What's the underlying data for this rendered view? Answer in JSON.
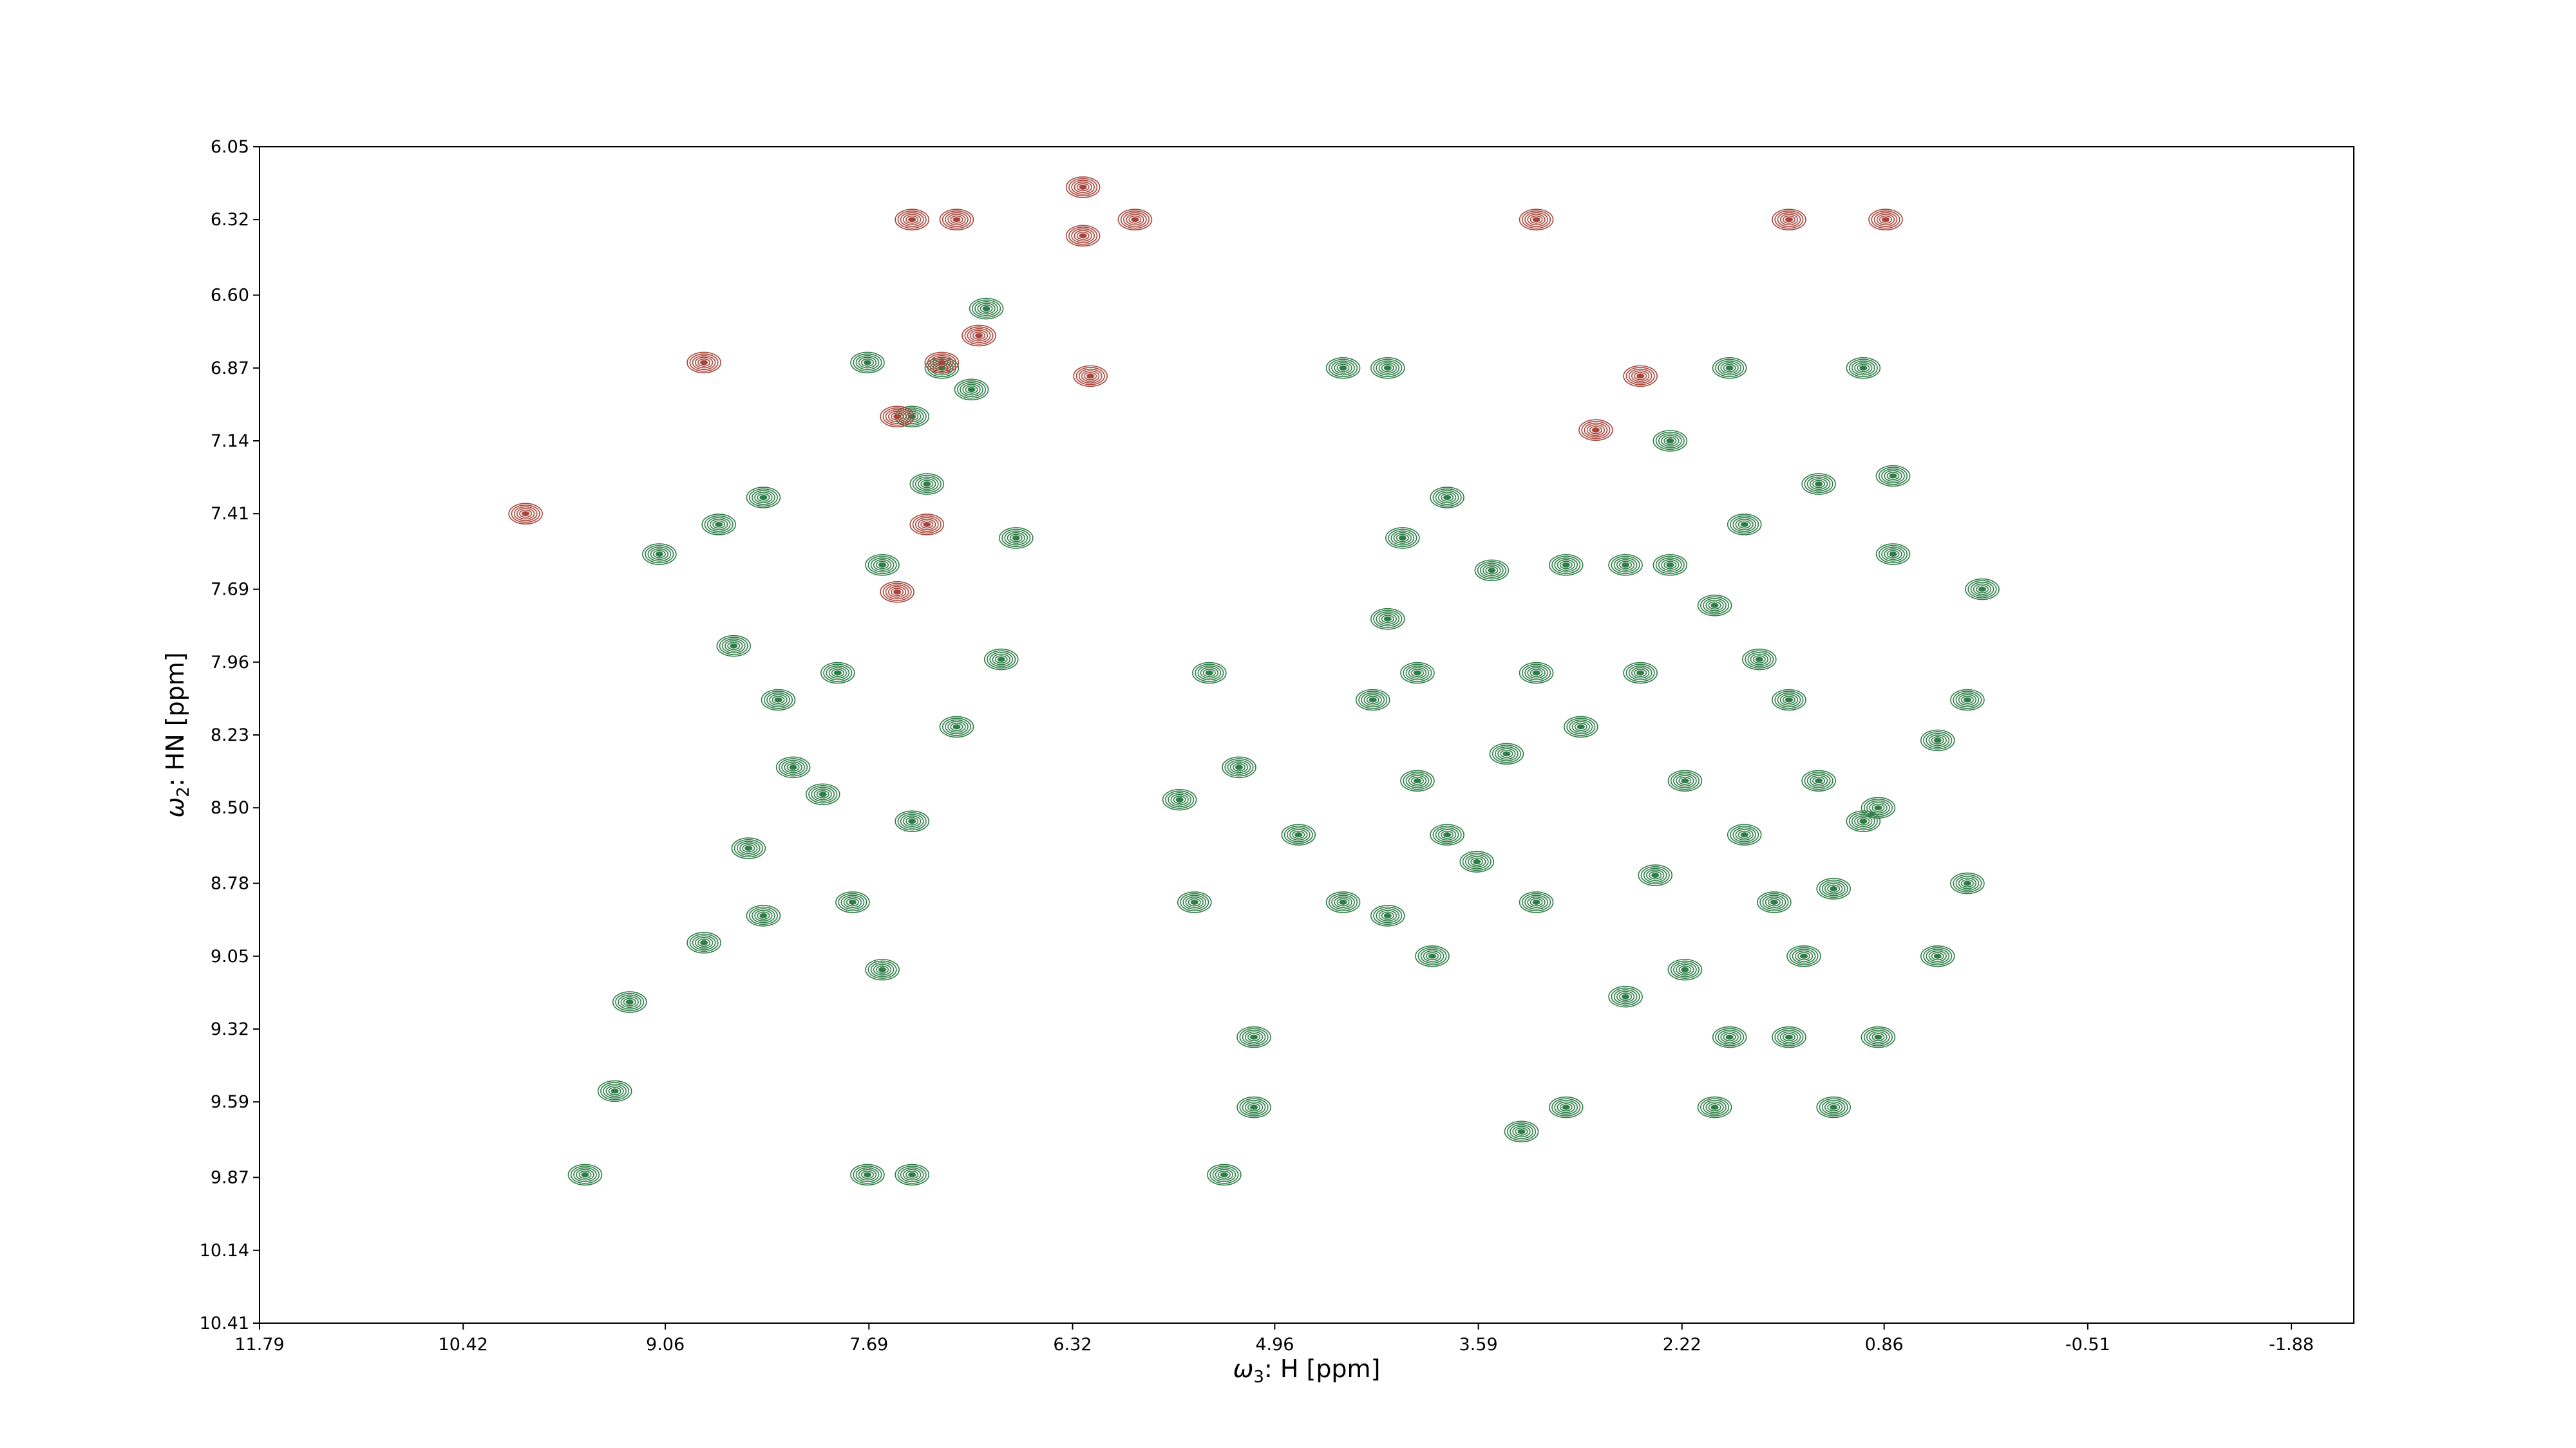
{
  "chart_data": {
    "type": "contour",
    "xlabel": {
      "omega": "ω",
      "sub": "3",
      "rest": ": H [ppm]"
    },
    "ylabel": {
      "omega": "ω",
      "sub": "2",
      "rest": ": HN [ppm]"
    },
    "xlim": [
      11.79,
      -2.3
    ],
    "ylim": [
      6.05,
      10.41
    ],
    "x_ticks": [
      11.79,
      10.42,
      9.06,
      7.69,
      6.32,
      4.96,
      3.59,
      2.22,
      0.86,
      -0.51,
      -1.88
    ],
    "x_tick_labels": [
      "11.79",
      "10.42",
      "9.06",
      "7.69",
      "6.32",
      "4.96",
      "3.59",
      "2.22",
      "0.86",
      "-0.51",
      "-1.88"
    ],
    "y_ticks": [
      6.05,
      6.32,
      6.6,
      6.87,
      7.14,
      7.41,
      7.69,
      7.96,
      8.23,
      8.5,
      8.78,
      9.05,
      9.32,
      9.59,
      9.87,
      10.14,
      10.41
    ],
    "y_tick_labels": [
      "6.05",
      "6.32",
      "6.60",
      "6.87",
      "7.14",
      "7.41",
      "7.69",
      "7.96",
      "8.23",
      "8.50",
      "8.78",
      "9.05",
      "9.32",
      "9.59",
      "9.87",
      "10.14",
      "10.41"
    ],
    "colors": {
      "positive": "#2e7d46",
      "negative": "#a8453a"
    },
    "series": [
      {
        "sign": "positive",
        "peaks": [
          {
            "x": 9.3,
            "y": 9.22
          },
          {
            "x": 9.4,
            "y": 9.55
          },
          {
            "x": 9.6,
            "y": 9.86
          },
          {
            "x": 8.8,
            "y": 9.0
          },
          {
            "x": 8.5,
            "y": 8.65
          },
          {
            "x": 8.2,
            "y": 8.35
          },
          {
            "x": 7.9,
            "y": 8.0
          },
          {
            "x": 7.6,
            "y": 7.6
          },
          {
            "x": 7.3,
            "y": 7.3
          },
          {
            "x": 7.0,
            "y": 6.95
          },
          {
            "x": 6.9,
            "y": 6.65
          },
          {
            "x": 7.2,
            "y": 6.87
          },
          {
            "x": 7.7,
            "y": 6.85
          },
          {
            "x": 7.4,
            "y": 7.05
          },
          {
            "x": 8.4,
            "y": 7.35
          },
          {
            "x": 8.7,
            "y": 7.45
          },
          {
            "x": 9.1,
            "y": 7.56
          },
          {
            "x": 8.6,
            "y": 7.9
          },
          {
            "x": 8.3,
            "y": 8.1
          },
          {
            "x": 8.0,
            "y": 8.45
          },
          {
            "x": 7.8,
            "y": 8.85
          },
          {
            "x": 7.4,
            "y": 8.55
          },
          {
            "x": 7.1,
            "y": 8.2
          },
          {
            "x": 6.8,
            "y": 7.95
          },
          {
            "x": 6.7,
            "y": 7.5
          },
          {
            "x": 7.7,
            "y": 9.86
          },
          {
            "x": 7.4,
            "y": 9.86
          },
          {
            "x": 8.4,
            "y": 8.9
          },
          {
            "x": 7.6,
            "y": 9.1
          },
          {
            "x": 5.1,
            "y": 9.35
          },
          {
            "x": 5.1,
            "y": 9.61
          },
          {
            "x": 5.3,
            "y": 9.86
          },
          {
            "x": 5.5,
            "y": 8.85
          },
          {
            "x": 5.6,
            "y": 8.47
          },
          {
            "x": 5.2,
            "y": 8.35
          },
          {
            "x": 5.4,
            "y": 8.0
          },
          {
            "x": 4.8,
            "y": 8.6
          },
          {
            "x": 4.5,
            "y": 8.85
          },
          {
            "x": 4.2,
            "y": 8.9
          },
          {
            "x": 4.0,
            "y": 8.0
          },
          {
            "x": 4.3,
            "y": 8.1
          },
          {
            "x": 4.0,
            "y": 8.4
          },
          {
            "x": 3.8,
            "y": 8.6
          },
          {
            "x": 3.6,
            "y": 8.7
          },
          {
            "x": 3.4,
            "y": 8.3
          },
          {
            "x": 3.2,
            "y": 8.0
          },
          {
            "x": 4.2,
            "y": 7.8
          },
          {
            "x": 4.1,
            "y": 7.5
          },
          {
            "x": 3.8,
            "y": 7.35
          },
          {
            "x": 4.5,
            "y": 6.87
          },
          {
            "x": 4.2,
            "y": 6.87
          },
          {
            "x": 3.5,
            "y": 7.62
          },
          {
            "x": 3.9,
            "y": 9.05
          },
          {
            "x": 2.9,
            "y": 8.2
          },
          {
            "x": 2.5,
            "y": 8.0
          },
          {
            "x": 2.3,
            "y": 7.6
          },
          {
            "x": 2.6,
            "y": 7.6
          },
          {
            "x": 2.0,
            "y": 7.75
          },
          {
            "x": 1.7,
            "y": 7.95
          },
          {
            "x": 1.5,
            "y": 8.1
          },
          {
            "x": 1.3,
            "y": 8.4
          },
          {
            "x": 1.0,
            "y": 8.55
          },
          {
            "x": 1.8,
            "y": 8.6
          },
          {
            "x": 2.2,
            "y": 8.4
          },
          {
            "x": 2.4,
            "y": 8.75
          },
          {
            "x": 1.6,
            "y": 8.85
          },
          {
            "x": 1.2,
            "y": 8.8
          },
          {
            "x": 0.9,
            "y": 8.5
          },
          {
            "x": 0.8,
            "y": 7.56
          },
          {
            "x": 0.8,
            "y": 7.27
          },
          {
            "x": 1.3,
            "y": 7.3
          },
          {
            "x": 1.8,
            "y": 7.45
          },
          {
            "x": 2.3,
            "y": 7.14
          },
          {
            "x": 1.9,
            "y": 6.87
          },
          {
            "x": 1.0,
            "y": 6.87
          },
          {
            "x": 3.0,
            "y": 7.6
          },
          {
            "x": 3.2,
            "y": 8.85
          },
          {
            "x": 2.2,
            "y": 9.1
          },
          {
            "x": 1.9,
            "y": 9.35
          },
          {
            "x": 1.5,
            "y": 9.35
          },
          {
            "x": 0.9,
            "y": 9.35
          },
          {
            "x": 1.2,
            "y": 9.61
          },
          {
            "x": 2.0,
            "y": 9.61
          },
          {
            "x": 3.0,
            "y": 9.61
          },
          {
            "x": 0.5,
            "y": 8.25
          },
          {
            "x": 0.3,
            "y": 8.1
          },
          {
            "x": 0.2,
            "y": 7.69
          },
          {
            "x": 0.3,
            "y": 8.78
          },
          {
            "x": 0.5,
            "y": 9.05
          },
          {
            "x": 1.4,
            "y": 9.05
          },
          {
            "x": 2.6,
            "y": 9.2
          },
          {
            "x": 3.3,
            "y": 9.7
          }
        ]
      },
      {
        "sign": "negative",
        "peaks": [
          {
            "x": 6.25,
            "y": 6.2
          },
          {
            "x": 6.25,
            "y": 6.38
          },
          {
            "x": 5.9,
            "y": 6.32
          },
          {
            "x": 6.2,
            "y": 6.9
          },
          {
            "x": 7.4,
            "y": 6.32
          },
          {
            "x": 7.1,
            "y": 6.32
          },
          {
            "x": 6.95,
            "y": 6.75
          },
          {
            "x": 7.2,
            "y": 6.85
          },
          {
            "x": 7.5,
            "y": 7.05
          },
          {
            "x": 7.3,
            "y": 7.45
          },
          {
            "x": 7.5,
            "y": 7.7
          },
          {
            "x": 8.8,
            "y": 6.85
          },
          {
            "x": 10.0,
            "y": 7.41
          },
          {
            "x": 3.2,
            "y": 6.32
          },
          {
            "x": 1.5,
            "y": 6.32
          },
          {
            "x": 0.85,
            "y": 6.32
          },
          {
            "x": 2.5,
            "y": 6.9
          },
          {
            "x": 2.8,
            "y": 7.1
          }
        ]
      }
    ]
  }
}
